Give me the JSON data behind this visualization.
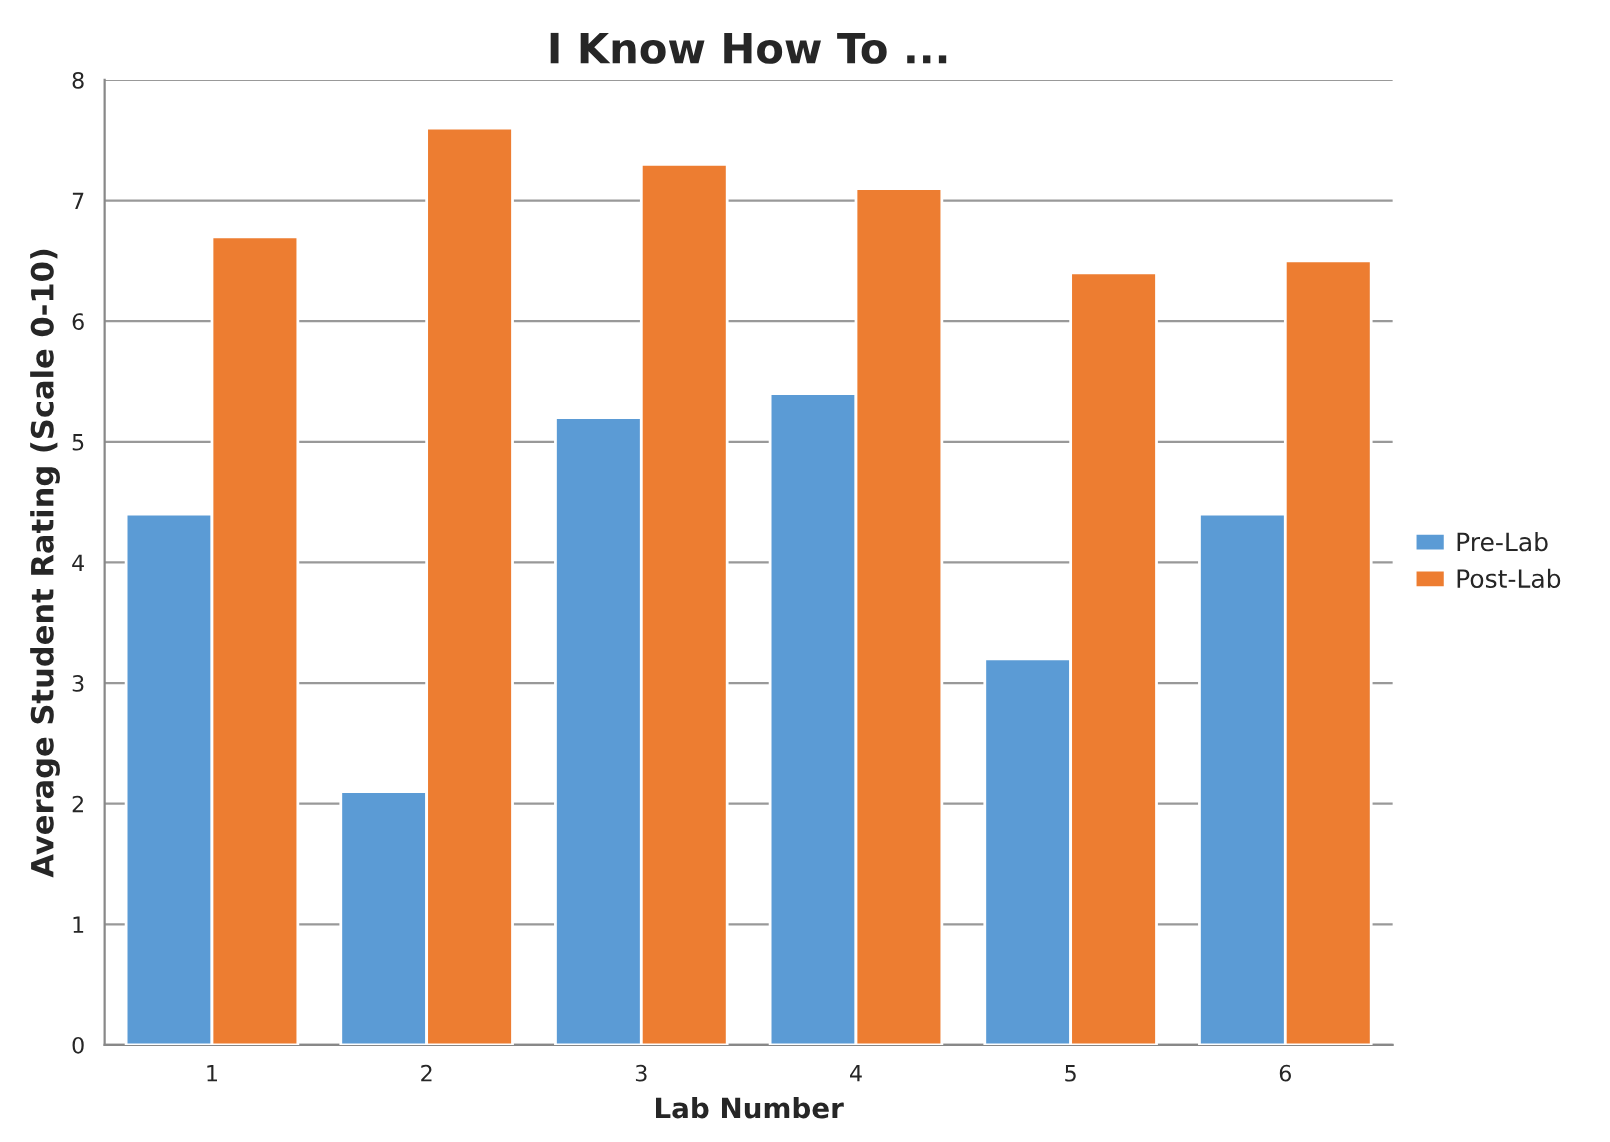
{
  "chart_data": {
    "type": "bar",
    "title": "I Know How To ...",
    "xlabel": "Lab Number",
    "ylabel": "Average Student Rating (Scale 0-10)",
    "categories": [
      "1",
      "2",
      "3",
      "4",
      "5",
      "6"
    ],
    "series": [
      {
        "name": "Pre-Lab",
        "color": "#5b9bd5",
        "values": [
          4.4,
          2.1,
          5.2,
          5.4,
          3.2,
          4.4
        ]
      },
      {
        "name": "Post-Lab",
        "color": "#ed7d31",
        "values": [
          6.7,
          7.6,
          7.3,
          7.1,
          6.4,
          6.5
        ]
      }
    ],
    "ylim": [
      0,
      8
    ],
    "yticks": [
      0,
      1,
      2,
      3,
      4,
      5,
      6,
      7,
      8
    ],
    "grid": "y",
    "legend": "right"
  }
}
